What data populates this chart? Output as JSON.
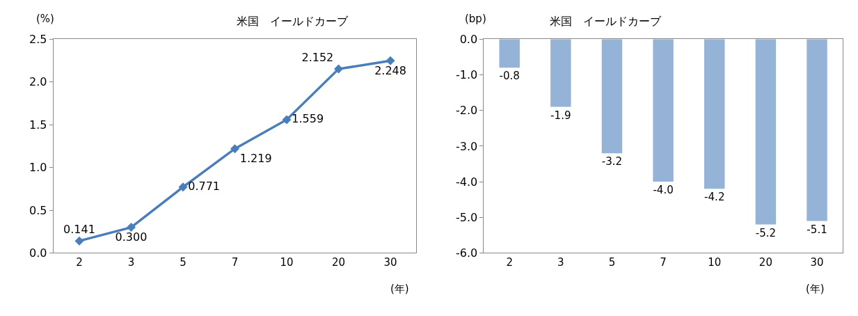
{
  "chart_data": [
    {
      "type": "line",
      "title": "米国　イールドカーブ",
      "ylabel": "(%)",
      "xlabel": "(年)",
      "categories": [
        "2",
        "3",
        "5",
        "7",
        "10",
        "20",
        "30"
      ],
      "series": [
        {
          "color": "#4a7ebb",
          "values": [
            0.141,
            0.3,
            0.771,
            1.219,
            1.559,
            2.152,
            2.248
          ],
          "value_labels": [
            "0.141",
            "0.300",
            "0.771",
            "1.219",
            "1.559",
            "2.152",
            "2.248"
          ]
        }
      ],
      "ylim": [
        0,
        2.5
      ],
      "yticks": [
        {
          "value": 0,
          "label": "0.0"
        },
        {
          "value": 0.5,
          "label": "0.5"
        },
        {
          "value": 1,
          "label": "1.0"
        },
        {
          "value": 1.5,
          "label": "1.5"
        },
        {
          "value": 2,
          "label": "2.0"
        },
        {
          "value": 2.5,
          "label": "2.5"
        }
      ],
      "marker": "diamond",
      "line_style": "solid",
      "grid": false
    },
    {
      "type": "bar",
      "title": "米国　イールドカーブ",
      "ylabel": "(bp)",
      "xlabel": "(年)",
      "categories": [
        "2",
        "3",
        "5",
        "7",
        "10",
        "20",
        "30"
      ],
      "series": [
        {
          "color": "#95b3d7",
          "values": [
            -0.8,
            -1.9,
            -3.2,
            -4.0,
            -4.2,
            -5.2,
            -5.1
          ],
          "value_labels": [
            "-0.8",
            "-1.9",
            "-3.2",
            "-4.0",
            "-4.2",
            "-5.2",
            "-5.1"
          ]
        }
      ],
      "ylim": [
        -6,
        0
      ],
      "yticks": [
        {
          "value": -6,
          "label": "-6.0"
        },
        {
          "value": -5,
          "label": "-5.0"
        },
        {
          "value": -4,
          "label": "-4.0"
        },
        {
          "value": -3,
          "label": "-3.0"
        },
        {
          "value": -2,
          "label": "-2.0"
        },
        {
          "value": -1,
          "label": "-1.0"
        },
        {
          "value": 0,
          "label": "0.0"
        }
      ],
      "grid": false
    }
  ]
}
